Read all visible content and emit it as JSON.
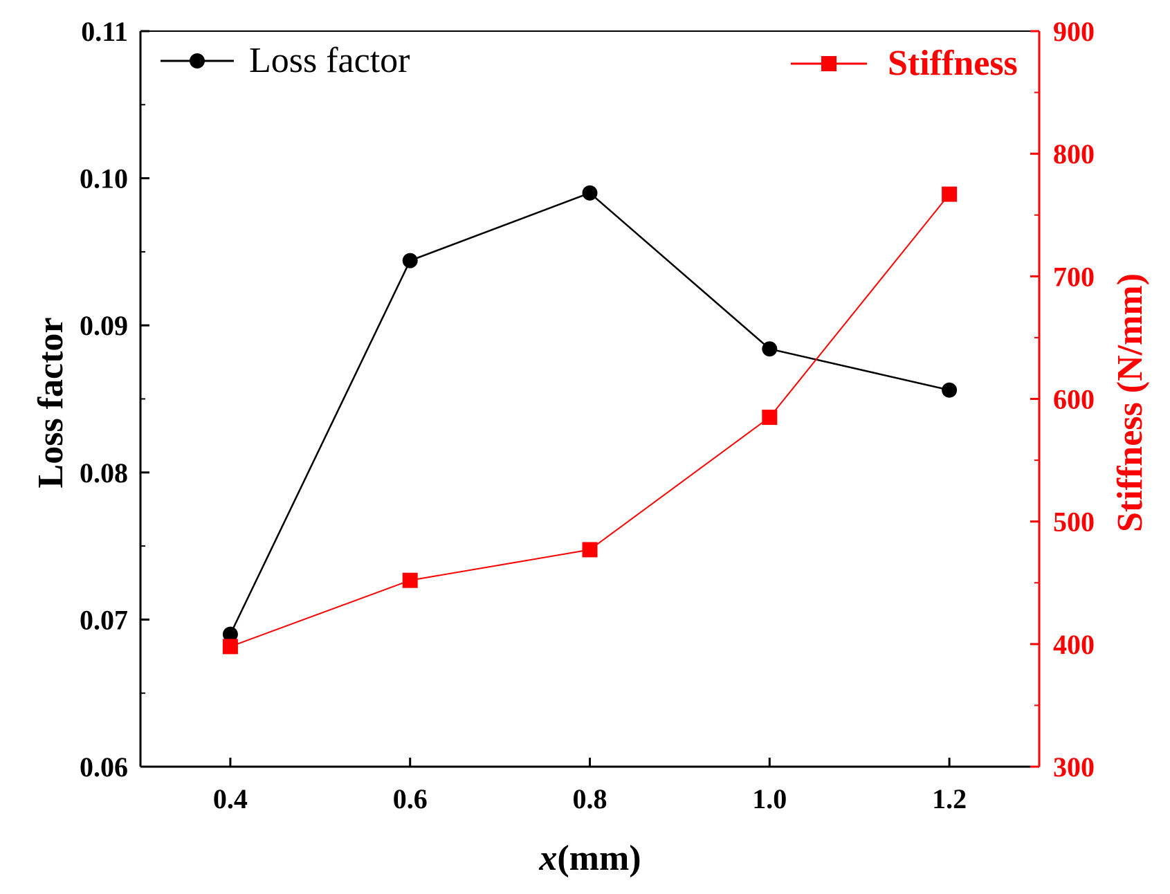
{
  "chart_data": {
    "type": "line",
    "x": [
      0.4,
      0.6,
      0.8,
      1.0,
      1.2
    ],
    "xlim": [
      0.3,
      1.3
    ],
    "x_ticks": [
      0.4,
      0.6,
      0.8,
      1.0,
      1.2
    ],
    "x_tick_labels": [
      "0.4",
      "0.6",
      "0.8",
      "1.0",
      "1.2"
    ],
    "xlabel_var": "x",
    "xlabel_unit": "(mm)",
    "ylabel_left": "Loss factor",
    "ylabel_right": "Stiffness (N/mm)",
    "ylim_left": [
      0.06,
      0.11
    ],
    "ylim_right": [
      300,
      900
    ],
    "y_ticks_left": [
      0.06,
      0.07,
      0.08,
      0.09,
      0.1,
      0.11
    ],
    "y_tick_labels_left": [
      "0.06",
      "0.07",
      "0.08",
      "0.09",
      "0.10",
      "0.11"
    ],
    "y_ticks_right": [
      300,
      400,
      500,
      600,
      700,
      800,
      900
    ],
    "y_tick_labels_right": [
      "300",
      "400",
      "500",
      "600",
      "700",
      "800",
      "900"
    ],
    "grid": false,
    "series": [
      {
        "name": "Loss factor",
        "axis": "left",
        "marker": "circle",
        "color": "#000000",
        "values": [
          0.069,
          0.0944,
          0.099,
          0.0884,
          0.0856
        ]
      },
      {
        "name": "Stiffness",
        "axis": "right",
        "marker": "square",
        "color": "#ff0000",
        "values": [
          398,
          452,
          477,
          585,
          767
        ]
      }
    ],
    "legend": [
      {
        "label": "Loss factor",
        "placement": "top-left"
      },
      {
        "label": "Stiffness",
        "placement": "top-right"
      }
    ]
  }
}
